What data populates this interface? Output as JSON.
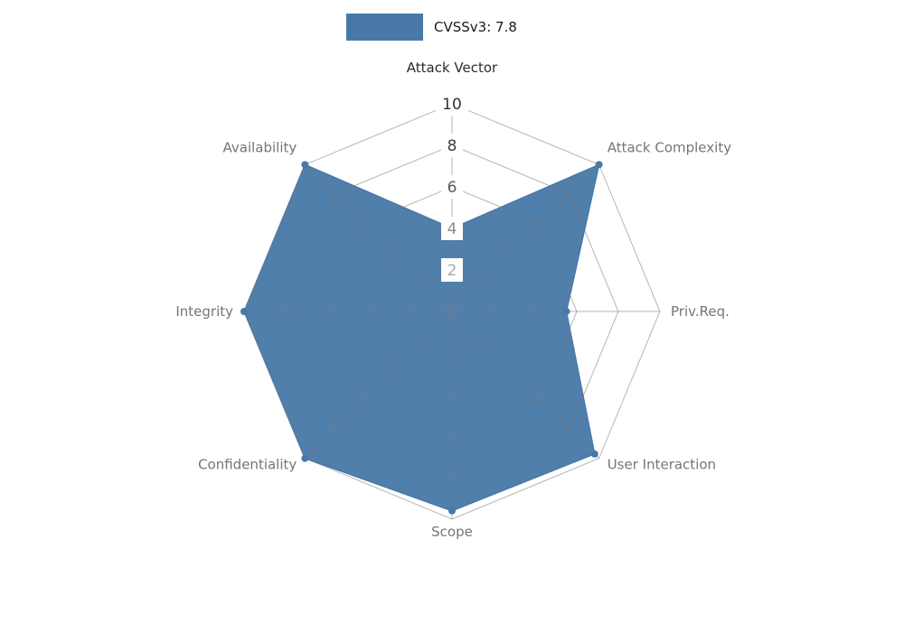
{
  "page": {
    "background_color": "#ffffff"
  },
  "legend": {
    "label": "CVSSv3: 7.8",
    "swatch_color": "#4878a8"
  },
  "chart_data": {
    "type": "radar",
    "title": "CVSSv3: 7.8",
    "categories": [
      "Attack Vector",
      "Attack Complexity",
      "Priv.Req.",
      "User Interaction",
      "Scope",
      "Confidentiality",
      "Integrity",
      "Availability"
    ],
    "series": [
      {
        "name": "CVSSv3: 7.8",
        "values": [
          4,
          10,
          5.5,
          9.7,
          9.6,
          10,
          10,
          10
        ],
        "fill_color": "#4878a8",
        "fill_opacity": 0.95,
        "marker": "circle",
        "marker_size": 4
      }
    ],
    "ylim": [
      0,
      10
    ],
    "ticks": [
      {
        "label": "2",
        "value": 2,
        "color": "#a9a9a9"
      },
      {
        "label": "4",
        "value": 4,
        "color": "#8c8c8c"
      },
      {
        "label": "6",
        "value": 6,
        "color": "#595959"
      },
      {
        "label": "8",
        "value": 8,
        "color": "#3d3d3d"
      },
      {
        "label": "10",
        "value": 10,
        "color": "#333333"
      }
    ],
    "tick_box_color": "#ffffff",
    "grid": {
      "shape": "polygon",
      "levels": [
        2,
        4,
        6,
        8,
        10
      ],
      "color": "#7a7a7a",
      "opacity": 0.55
    },
    "category_label_colors": [
      "#2b2b2b",
      "#757575",
      "#757575",
      "#757575",
      "#757575",
      "#757575",
      "#757575",
      "#757575"
    ],
    "legend_position": "top-center",
    "start_angle_deg": -90,
    "direction": "clockwise"
  }
}
